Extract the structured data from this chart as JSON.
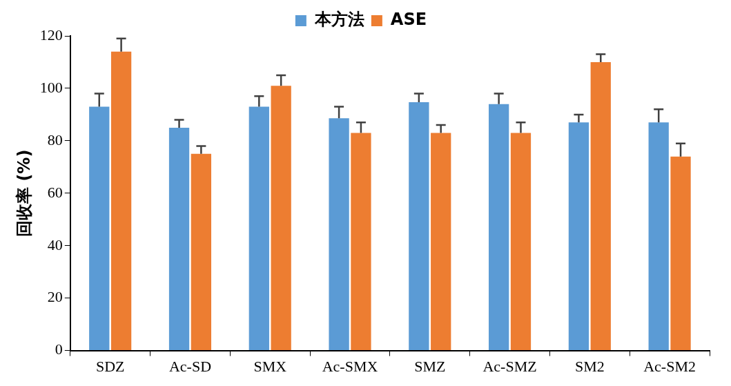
{
  "chart_data": {
    "type": "bar",
    "ylabel": "回收率 (%)",
    "categories": [
      "SDZ",
      "Ac-SD",
      "SMX",
      "Ac-SMX",
      "SMZ",
      "Ac-SMZ",
      "SM2",
      "Ac-SM2"
    ],
    "series": [
      {
        "name": "本方法",
        "color": "#5b9bd5",
        "values": [
          93,
          85,
          93,
          88.6,
          94.7,
          94,
          87,
          87
        ],
        "errors": [
          [
            93,
            98
          ],
          [
            85,
            88
          ],
          [
            93,
            97
          ],
          [
            88.6,
            93
          ],
          [
            94.7,
            98
          ],
          [
            94,
            98
          ],
          [
            87,
            90
          ],
          [
            87,
            92
          ]
        ]
      },
      {
        "name": "ASE",
        "color": "#ed7d31",
        "values": [
          114,
          75,
          101,
          83,
          83,
          83,
          110,
          74
        ],
        "errors": [
          [
            114,
            119
          ],
          [
            75,
            78
          ],
          [
            101,
            105
          ],
          [
            83,
            87
          ],
          [
            83,
            86
          ],
          [
            83,
            87
          ],
          [
            110,
            113
          ],
          [
            74,
            79
          ]
        ]
      }
    ],
    "ylim": [
      0,
      120
    ],
    "yticks": [
      0,
      20,
      40,
      60,
      80,
      100,
      120
    ],
    "grid": false,
    "legend": "top"
  }
}
